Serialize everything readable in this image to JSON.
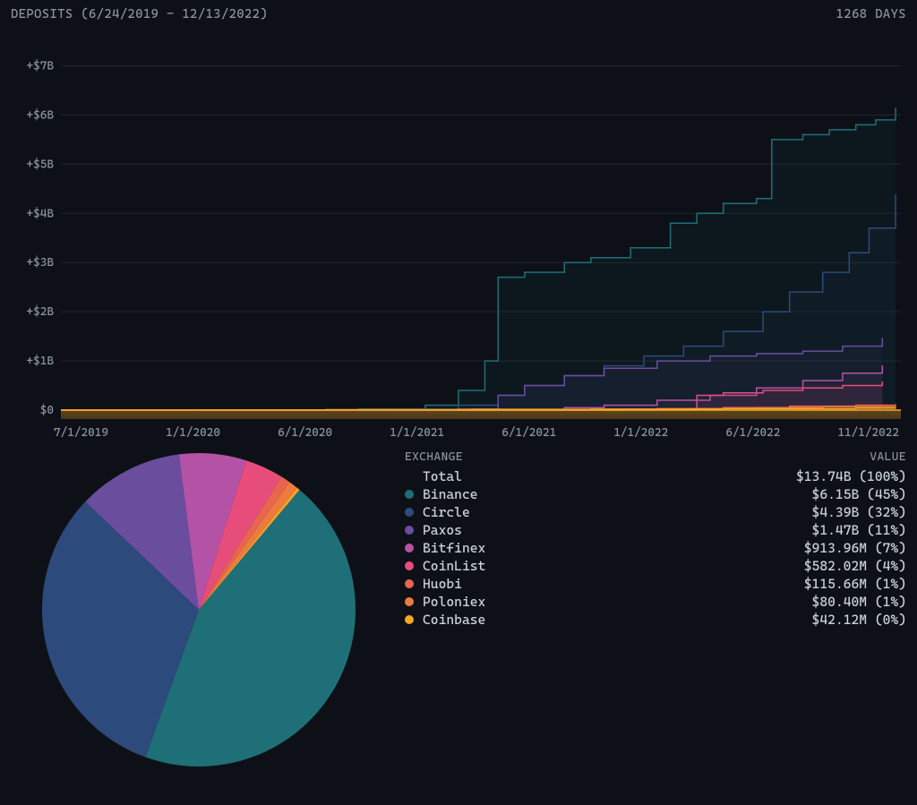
{
  "header": {
    "title": "DEPOSITS (6/24/2019 - 12/13/2022)",
    "days": "1268 DAYS"
  },
  "colors": {
    "background": "#0d1117",
    "text_muted": "#8b949e",
    "text": "#c9d1d9",
    "grid": "#21262d"
  },
  "line_chart": {
    "type": "step-line",
    "ylim": [
      0,
      7.5
    ],
    "y_ticks": [
      {
        "v": 0,
        "label": "$0"
      },
      {
        "v": 1,
        "label": "+$1B"
      },
      {
        "v": 2,
        "label": "+$2B"
      },
      {
        "v": 3,
        "label": "+$3B"
      },
      {
        "v": 4,
        "label": "+$4B"
      },
      {
        "v": 5,
        "label": "+$5B"
      },
      {
        "v": 6,
        "label": "+$6B"
      },
      {
        "v": 7,
        "label": "+$7B"
      }
    ],
    "x_range_days": 1268,
    "x_ticks": [
      {
        "d": 7,
        "label": "7/1/2019"
      },
      {
        "d": 191,
        "label": "1/1/2020"
      },
      {
        "d": 343,
        "label": "6/1/2020"
      },
      {
        "d": 557,
        "label": "1/1/2021"
      },
      {
        "d": 708,
        "label": "6/1/2021"
      },
      {
        "d": 922,
        "label": "1/1/2022"
      },
      {
        "d": 1073,
        "label": "6/1/2022"
      },
      {
        "d": 1226,
        "label": "11/1/2022"
      }
    ],
    "series": [
      {
        "name": "Binance",
        "color": "#1f6f78",
        "points": [
          [
            0,
            0
          ],
          [
            450,
            0.02
          ],
          [
            550,
            0.1
          ],
          [
            600,
            0.4
          ],
          [
            640,
            1.0
          ],
          [
            660,
            2.7
          ],
          [
            700,
            2.8
          ],
          [
            760,
            3.0
          ],
          [
            800,
            3.1
          ],
          [
            860,
            3.3
          ],
          [
            920,
            3.8
          ],
          [
            960,
            4.0
          ],
          [
            1000,
            4.2
          ],
          [
            1050,
            4.3
          ],
          [
            1073,
            5.5
          ],
          [
            1120,
            5.6
          ],
          [
            1160,
            5.7
          ],
          [
            1200,
            5.8
          ],
          [
            1230,
            5.9
          ],
          [
            1260,
            6.15
          ]
        ]
      },
      {
        "name": "Circle",
        "color": "#2d4a7c",
        "points": [
          [
            0,
            0
          ],
          [
            500,
            0.02
          ],
          [
            600,
            0.1
          ],
          [
            660,
            0.3
          ],
          [
            700,
            0.5
          ],
          [
            760,
            0.7
          ],
          [
            820,
            0.9
          ],
          [
            880,
            1.1
          ],
          [
            940,
            1.3
          ],
          [
            1000,
            1.6
          ],
          [
            1060,
            2.0
          ],
          [
            1100,
            2.4
          ],
          [
            1150,
            2.8
          ],
          [
            1190,
            3.2
          ],
          [
            1220,
            3.7
          ],
          [
            1260,
            4.39
          ]
        ]
      },
      {
        "name": "Paxos",
        "color": "#6b4d9e",
        "points": [
          [
            0,
            0
          ],
          [
            620,
            0.02
          ],
          [
            660,
            0.3
          ],
          [
            700,
            0.5
          ],
          [
            760,
            0.7
          ],
          [
            820,
            0.85
          ],
          [
            900,
            1.0
          ],
          [
            980,
            1.1
          ],
          [
            1050,
            1.15
          ],
          [
            1120,
            1.2
          ],
          [
            1180,
            1.3
          ],
          [
            1240,
            1.47
          ]
        ]
      },
      {
        "name": "Bitfinex",
        "color": "#b453a6",
        "points": [
          [
            0,
            0
          ],
          [
            700,
            0.01
          ],
          [
            760,
            0.05
          ],
          [
            820,
            0.1
          ],
          [
            900,
            0.2
          ],
          [
            980,
            0.3
          ],
          [
            1050,
            0.45
          ],
          [
            1120,
            0.6
          ],
          [
            1180,
            0.75
          ],
          [
            1240,
            0.91
          ]
        ]
      },
      {
        "name": "CoinList",
        "color": "#e74d7b",
        "points": [
          [
            0,
            0
          ],
          [
            920,
            0.01
          ],
          [
            960,
            0.3
          ],
          [
            1000,
            0.35
          ],
          [
            1060,
            0.4
          ],
          [
            1120,
            0.45
          ],
          [
            1180,
            0.5
          ],
          [
            1240,
            0.58
          ]
        ]
      },
      {
        "name": "Huobi",
        "color": "#e8654f",
        "points": [
          [
            0,
            0
          ],
          [
            800,
            0.01
          ],
          [
            900,
            0.03
          ],
          [
            1000,
            0.05
          ],
          [
            1100,
            0.08
          ],
          [
            1200,
            0.1
          ],
          [
            1260,
            0.12
          ]
        ]
      },
      {
        "name": "Poloniex",
        "color": "#ee7b3e",
        "points": [
          [
            0,
            0
          ],
          [
            850,
            0.01
          ],
          [
            950,
            0.03
          ],
          [
            1050,
            0.05
          ],
          [
            1150,
            0.07
          ],
          [
            1260,
            0.08
          ]
        ]
      },
      {
        "name": "Coinbase",
        "color": "#f5a623",
        "points": [
          [
            0,
            0
          ],
          [
            200,
            0.005
          ],
          [
            400,
            0.01
          ],
          [
            600,
            0.015
          ],
          [
            800,
            0.02
          ],
          [
            1000,
            0.03
          ],
          [
            1200,
            0.04
          ],
          [
            1260,
            0.042
          ]
        ]
      }
    ],
    "baseline_glow_color": "#f5a623"
  },
  "pie_chart": {
    "type": "pie",
    "radius": 175,
    "slices": [
      {
        "name": "Binance",
        "pct": 45,
        "color": "#1f6f78"
      },
      {
        "name": "Circle",
        "pct": 32,
        "color": "#2d4a7c"
      },
      {
        "name": "Paxos",
        "pct": 11,
        "color": "#6b4d9e"
      },
      {
        "name": "Bitfinex",
        "pct": 7,
        "color": "#b453a6"
      },
      {
        "name": "CoinList",
        "pct": 4,
        "color": "#e74d7b"
      },
      {
        "name": "Huobi",
        "pct": 1,
        "color": "#e8654f"
      },
      {
        "name": "Poloniex",
        "pct": 1,
        "color": "#ee7b3e"
      },
      {
        "name": "Coinbase",
        "pct": 0.3,
        "color": "#f5a623"
      }
    ],
    "start_angle_deg": -50
  },
  "legend": {
    "header_left": "EXCHANGE",
    "header_right": "VALUE",
    "rows": [
      {
        "dot": null,
        "name": "Total",
        "value": "$13.74B (100%)"
      },
      {
        "dot": "#1f6f78",
        "name": "Binance",
        "value": "$6.15B (45%)"
      },
      {
        "dot": "#2d4a7c",
        "name": "Circle",
        "value": "$4.39B (32%)"
      },
      {
        "dot": "#6b4d9e",
        "name": "Paxos",
        "value": "$1.47B (11%)"
      },
      {
        "dot": "#b453a6",
        "name": "Bitfinex",
        "value": "$913.96M (7%)"
      },
      {
        "dot": "#e74d7b",
        "name": "CoinList",
        "value": "$582.02M (4%)"
      },
      {
        "dot": "#e8654f",
        "name": "Huobi",
        "value": "$115.66M (1%)"
      },
      {
        "dot": "#ee7b3e",
        "name": "Poloniex",
        "value": "$80.40M (1%)"
      },
      {
        "dot": "#f5a623",
        "name": "Coinbase",
        "value": "$42.12M (0%)"
      }
    ]
  }
}
